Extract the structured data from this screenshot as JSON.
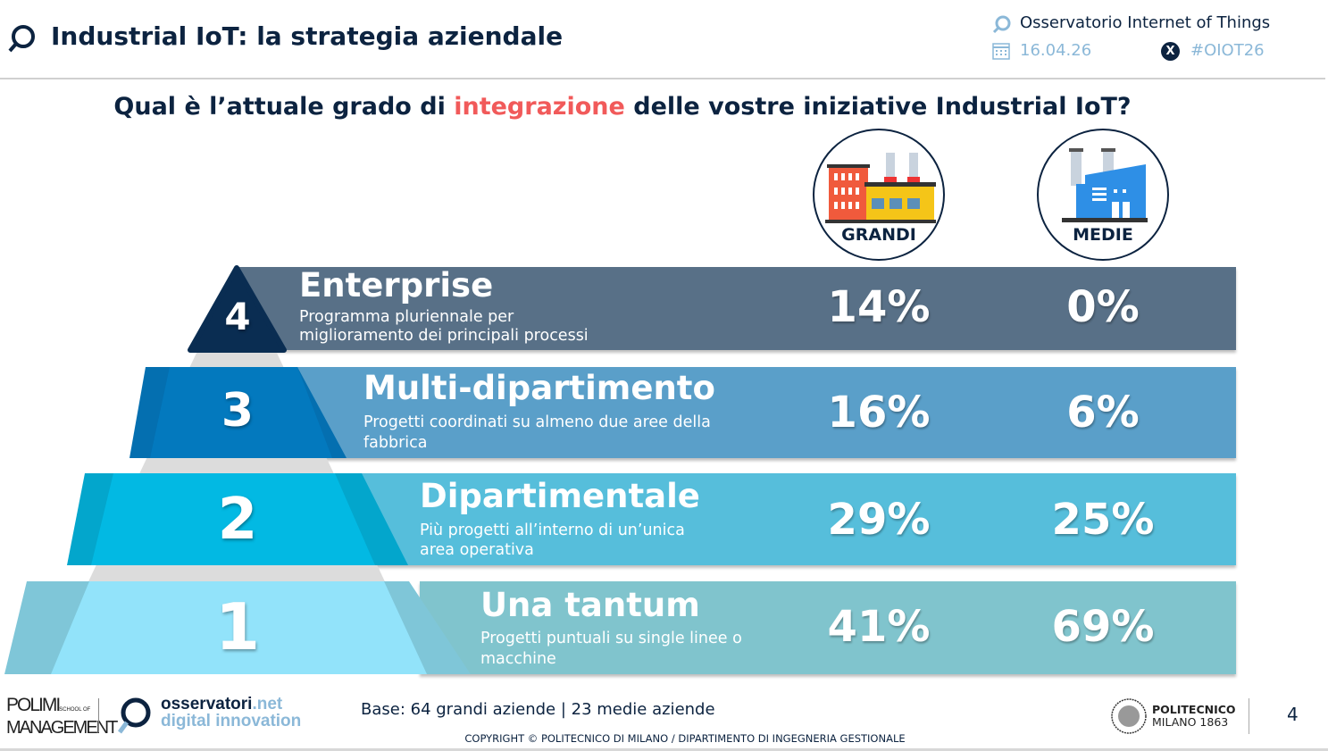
{
  "header": {
    "title": "Industrial IoT: la strategia aziendale",
    "observatory": "Osservatorio Internet of Things",
    "date": "16.04.26",
    "hashtag": "#OIOT26"
  },
  "question": {
    "before": "Qual è l’attuale grado di ",
    "highlight": "integrazione",
    "after": " delle vostre iniziative Industrial IoT?"
  },
  "columns": [
    {
      "label": "GRANDI",
      "icon": "large-factory-icon"
    },
    {
      "label": "MEDIE",
      "icon": "medium-factory-icon"
    }
  ],
  "levels": [
    {
      "num": "4",
      "title": "Enterprise",
      "desc": "Programma pluriennale per miglioramento dei principali processi",
      "grandi": "14%",
      "medie": "0%",
      "color": "#587087",
      "pyr": "#0a2d52"
    },
    {
      "num": "3",
      "title": "Multi-dipartimento",
      "desc": "Progetti coordinati su almeno due aree della fabbrica",
      "grandi": "16%",
      "medie": "6%",
      "color": "#5a9fc9",
      "pyr": "#0379be"
    },
    {
      "num": "2",
      "title": "Dipartimentale",
      "desc": "Più progetti all’interno di un’unica area operativa",
      "grandi": "29%",
      "medie": "25%",
      "color": "#56bedb",
      "pyr": "#02b9e3"
    },
    {
      "num": "1",
      "title": "Una tantum",
      "desc": "Progetti puntuali su single linee o macchine",
      "grandi": "41%",
      "medie": "69%",
      "color": "#80c4cd",
      "pyr": "#92e3fa"
    }
  ],
  "footer": {
    "polimi_1": "POLIMI",
    "polimi_2": "SCHOOL OF",
    "polimi_3": "MANAGEMENT",
    "oss_1": "osservatori",
    "oss_2": ".net",
    "oss_3": "digital innovation",
    "base": "Base: 64 grandi aziende | 23 medie aziende",
    "copyright": "COPYRIGHT © POLITECNICO DI MILANO / DIPARTIMENTO DI INGEGNERIA GESTIONALE",
    "poli_1": "POLITECNICO",
    "poli_2": "MILANO 1863",
    "page": "4"
  }
}
